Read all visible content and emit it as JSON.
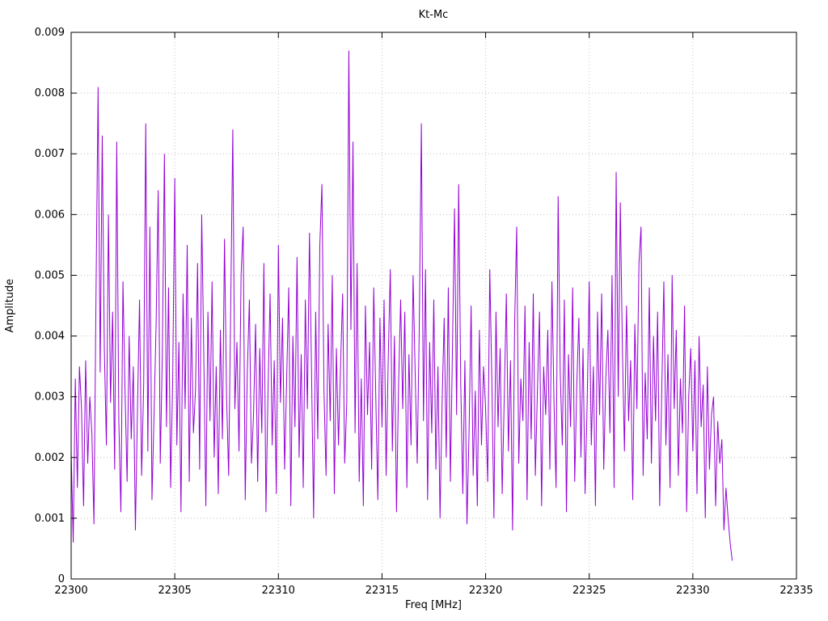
{
  "chart_data": {
    "type": "line",
    "title": "Kt-Mc",
    "xlabel": "Freq [MHz]",
    "ylabel": "Amplitude",
    "xlim": [
      22300,
      22335
    ],
    "ylim": [
      0,
      0.009
    ],
    "x_ticks": [
      "22300",
      "22305",
      "22310",
      "22315",
      "22320",
      "22325",
      "22330",
      "22335"
    ],
    "x_tick_values": [
      22300,
      22305,
      22310,
      22315,
      22320,
      22325,
      22330,
      22335
    ],
    "y_ticks": [
      "0",
      "0.001",
      "0.002",
      "0.003",
      "0.004",
      "0.005",
      "0.006",
      "0.007",
      "0.008",
      "0.009"
    ],
    "y_tick_values": [
      0,
      0.001,
      0.002,
      0.003,
      0.004,
      0.005,
      0.006,
      0.007,
      0.008,
      0.009
    ],
    "grid": true,
    "legend": "none",
    "line_color": "#9400d3",
    "grid_color": "#c0c0c0",
    "border_color": "#000000",
    "series_name": "Kt-Mc",
    "x_start": 22300.0,
    "x_step": 0.1,
    "amp_scale": 0.0001,
    "values": [
      21,
      6,
      33,
      15,
      35,
      28,
      12,
      36,
      19,
      30,
      24,
      9,
      47,
      81,
      34,
      73,
      38,
      22,
      60,
      29,
      44,
      18,
      72,
      26,
      11,
      49,
      31,
      16,
      40,
      23,
      35,
      8,
      28,
      46,
      17,
      32,
      75,
      21,
      58,
      13,
      27,
      42,
      64,
      19,
      37,
      70,
      25,
      48,
      15,
      33,
      66,
      22,
      39,
      11,
      47,
      28,
      55,
      16,
      43,
      24,
      31,
      52,
      18,
      60,
      37,
      12,
      44,
      26,
      49,
      20,
      35,
      14,
      41,
      23,
      56,
      30,
      17,
      45,
      74,
      28,
      39,
      21,
      50,
      58,
      13,
      34,
      46,
      19,
      27,
      42,
      16,
      38,
      24,
      52,
      11,
      31,
      47,
      22,
      36,
      14,
      55,
      29,
      43,
      18,
      33,
      48,
      12,
      40,
      25,
      53,
      20,
      37,
      15,
      46,
      28,
      57,
      34,
      10,
      44,
      23,
      55,
      65,
      31,
      17,
      42,
      26,
      50,
      14,
      38,
      22,
      35,
      47,
      19,
      29,
      87,
      41,
      72,
      24,
      52,
      16,
      33,
      12,
      45,
      27,
      39,
      18,
      48,
      30,
      13,
      43,
      25,
      46,
      17,
      36,
      51,
      21,
      40,
      11,
      32,
      46,
      28,
      44,
      15,
      37,
      22,
      50,
      34,
      19,
      42,
      75,
      26,
      51,
      13,
      39,
      24,
      46,
      18,
      35,
      10,
      29,
      43,
      20,
      48,
      16,
      38,
      61,
      27,
      65,
      32,
      14,
      36,
      9,
      24,
      45,
      17,
      31,
      12,
      41,
      22,
      35,
      28,
      16,
      51,
      33,
      10,
      44,
      25,
      38,
      14,
      30,
      47,
      21,
      36,
      8,
      42,
      58,
      19,
      33,
      26,
      45,
      13,
      39,
      23,
      47,
      17,
      31,
      44,
      12,
      35,
      27,
      41,
      18,
      49,
      29,
      15,
      63,
      34,
      22,
      46,
      11,
      37,
      25,
      48,
      16,
      32,
      43,
      20,
      38,
      14,
      29,
      49,
      22,
      35,
      12,
      44,
      27,
      47,
      18,
      33,
      41,
      24,
      50,
      15,
      67,
      30,
      62,
      38,
      21,
      45,
      26,
      36,
      13,
      42,
      28,
      52,
      58,
      17,
      34,
      23,
      48,
      19,
      40,
      26,
      44,
      12,
      31,
      49,
      22,
      37,
      15,
      50,
      28,
      41,
      17,
      33,
      24,
      45,
      11,
      30,
      38,
      21,
      36,
      14,
      40,
      25,
      32,
      10,
      35,
      18,
      27,
      30,
      12,
      26,
      19,
      23,
      8,
      15,
      10,
      6,
      3
    ]
  }
}
